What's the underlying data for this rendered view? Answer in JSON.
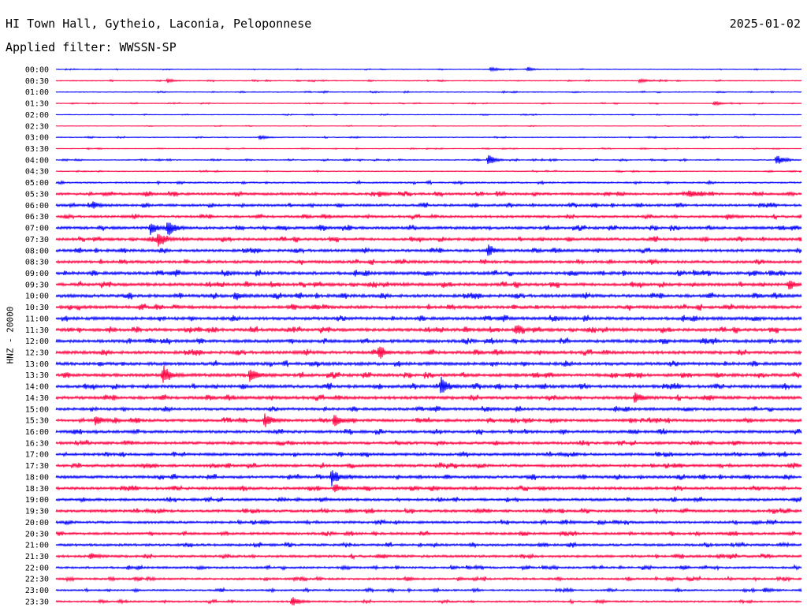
{
  "header": {
    "station": "HI Town Hall, Gytheio, Laconia, Peloponnese",
    "date": "2025-01-02",
    "filter": "Applied filter: WWSSN-SP"
  },
  "chart_data": {
    "type": "line",
    "chart_kind": "helicorder",
    "ylabel": "HNZ - 20000",
    "row_labels": [
      "00:00",
      "00:30",
      "01:00",
      "01:30",
      "02:00",
      "02:30",
      "03:00",
      "03:30",
      "04:00",
      "04:30",
      "05:00",
      "05:30",
      "06:00",
      "06:30",
      "07:00",
      "07:30",
      "08:00",
      "08:30",
      "09:00",
      "09:30",
      "10:00",
      "10:30",
      "11:00",
      "11:30",
      "12:00",
      "12:30",
      "13:00",
      "13:30",
      "14:00",
      "14:30",
      "15:00",
      "15:30",
      "16:00",
      "16:30",
      "17:00",
      "17:30",
      "18:00",
      "18:30",
      "19:00",
      "19:30",
      "20:00",
      "20:30",
      "21:00",
      "21:30",
      "22:00",
      "22:30",
      "23:00",
      "23:30"
    ],
    "trace_colors": [
      "#0000ff",
      "#ff0040"
    ],
    "row_background_amplitude": [
      0.4,
      0.5,
      0.5,
      0.4,
      0.4,
      0.3,
      0.5,
      0.4,
      0.6,
      0.5,
      0.9,
      1.4,
      1.4,
      1.4,
      1.6,
      1.6,
      1.6,
      1.6,
      1.8,
      1.8,
      1.8,
      1.8,
      1.8,
      1.8,
      1.8,
      1.8,
      1.8,
      1.8,
      1.8,
      1.8,
      1.6,
      1.6,
      1.6,
      1.6,
      1.6,
      1.6,
      1.6,
      1.6,
      1.5,
      1.5,
      1.4,
      1.4,
      1.4,
      1.4,
      1.2,
      1.2,
      1.0,
      1.0
    ],
    "events": [
      {
        "row": "00:00",
        "minute": 19.0,
        "amplitude": 2.5
      },
      {
        "row": "00:00",
        "minute": 17.5,
        "amplitude": 2.0
      },
      {
        "row": "00:30",
        "minute": 4.5,
        "amplitude": 2.5
      },
      {
        "row": "00:30",
        "minute": 23.5,
        "amplitude": 3.0
      },
      {
        "row": "01:30",
        "minute": 26.5,
        "amplitude": 3.0
      },
      {
        "row": "03:00",
        "minute": 8.2,
        "amplitude": 3.0
      },
      {
        "row": "04:00",
        "minute": 17.4,
        "amplitude": 7.5
      },
      {
        "row": "04:00",
        "minute": 29.0,
        "amplitude": 7.5
      },
      {
        "row": "05:30",
        "minute": 13.0,
        "amplitude": 4.0
      },
      {
        "row": "05:30",
        "minute": 25.5,
        "amplitude": 5.0
      },
      {
        "row": "06:00",
        "minute": 1.5,
        "amplitude": 4.0
      },
      {
        "row": "06:30",
        "minute": 27.0,
        "amplitude": 3.5
      },
      {
        "row": "07:00",
        "minute": 3.8,
        "amplitude": 9.0
      },
      {
        "row": "07:00",
        "minute": 4.5,
        "amplitude": 12.0
      },
      {
        "row": "07:30",
        "minute": 4.1,
        "amplitude": 9.0
      },
      {
        "row": "08:00",
        "minute": 17.4,
        "amplitude": 6.0
      },
      {
        "row": "09:30",
        "minute": 29.5,
        "amplitude": 4.5
      },
      {
        "row": "10:00",
        "minute": 7.2,
        "amplitude": 4.0
      },
      {
        "row": "11:30",
        "minute": 18.5,
        "amplitude": 6.5
      },
      {
        "row": "12:30",
        "minute": 13.0,
        "amplitude": 7.0
      },
      {
        "row": "13:30",
        "minute": 4.3,
        "amplitude": 10.0
      },
      {
        "row": "13:30",
        "minute": 7.8,
        "amplitude": 10.0
      },
      {
        "row": "14:00",
        "minute": 15.5,
        "amplitude": 12.0
      },
      {
        "row": "14:30",
        "minute": 23.3,
        "amplitude": 8.0
      },
      {
        "row": "15:30",
        "minute": 1.6,
        "amplitude": 6.5
      },
      {
        "row": "15:30",
        "minute": 8.4,
        "amplitude": 9.0
      },
      {
        "row": "15:30",
        "minute": 11.2,
        "amplitude": 9.5
      },
      {
        "row": "18:00",
        "minute": 11.1,
        "amplitude": 12.0
      },
      {
        "row": "18:30",
        "minute": 11.2,
        "amplitude": 6.0
      },
      {
        "row": "21:30",
        "minute": 1.4,
        "amplitude": 4.0
      },
      {
        "row": "23:00",
        "minute": 28.5,
        "amplitude": 4.0
      },
      {
        "row": "23:30",
        "minute": 9.5,
        "amplitude": 7.0
      }
    ]
  }
}
